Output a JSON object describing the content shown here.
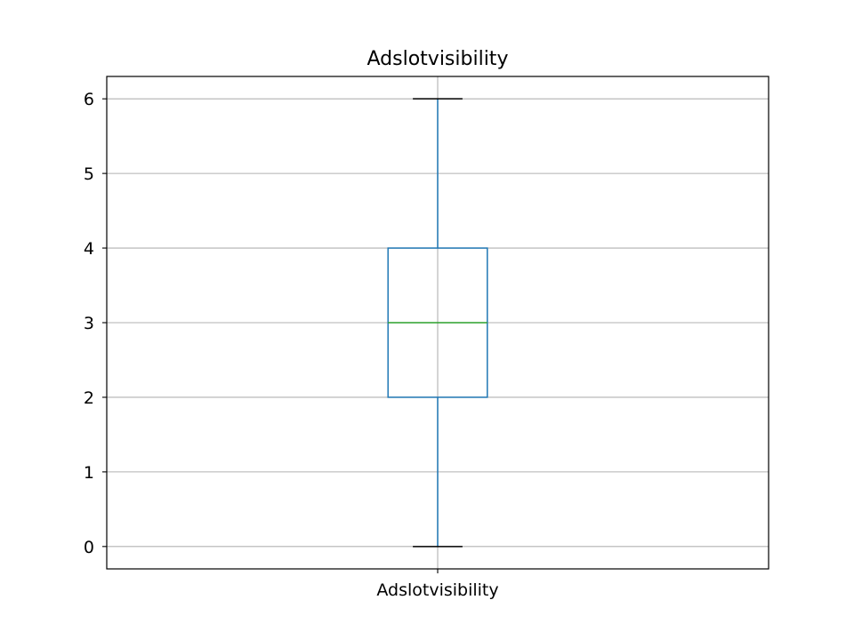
{
  "chart_data": {
    "type": "box",
    "title": "Adslotvisibility",
    "xlabel": "",
    "ylabel": "",
    "categories": [
      "Adslotvisibility"
    ],
    "boxes": [
      {
        "name": "Adslotvisibility",
        "whisker_low": 0,
        "q1": 2,
        "median": 3,
        "q3": 4,
        "whisker_high": 6
      }
    ],
    "ylim": [
      -0.3,
      6.3
    ],
    "yticks": [
      0,
      1,
      2,
      3,
      4,
      5,
      6
    ],
    "grid": true,
    "colors": {
      "box": "#1f77b4",
      "median": "#2ca02c",
      "caps": "#000000",
      "grid": "#b0b0b0",
      "axes": "#000000"
    }
  }
}
